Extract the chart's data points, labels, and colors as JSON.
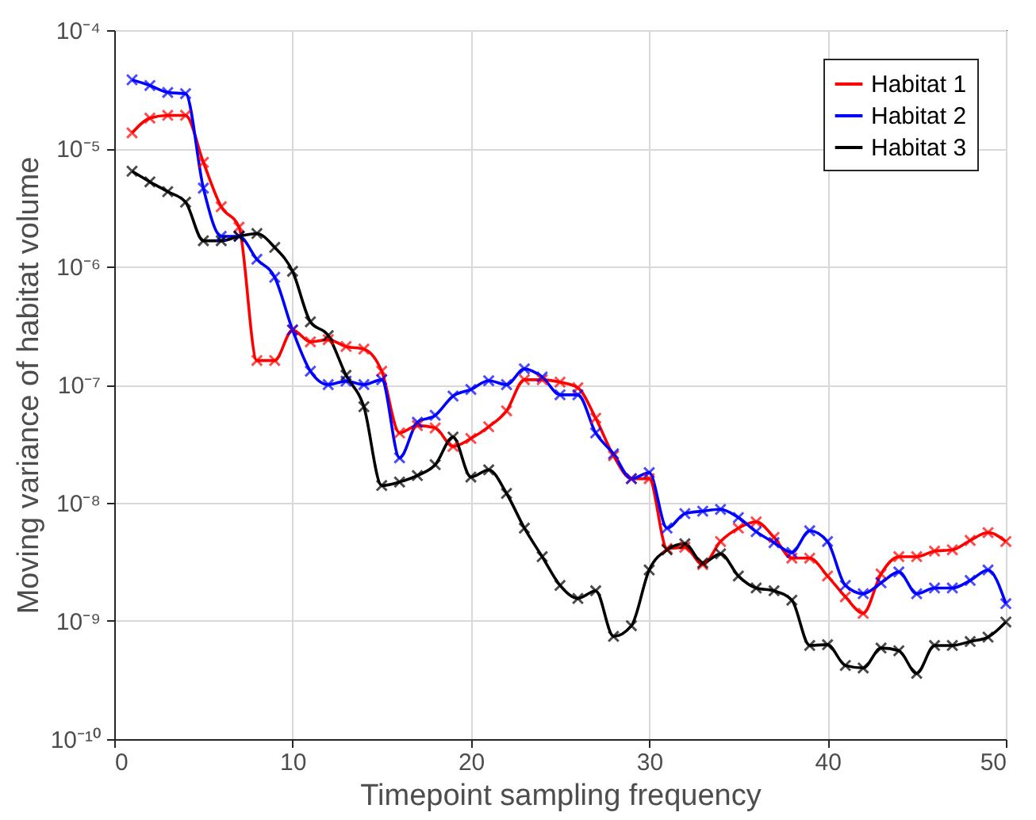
{
  "chart_data": {
    "type": "line",
    "xlabel": "Timepoint sampling frequency",
    "ylabel": "Moving variance of habitat volume",
    "x": [
      1,
      2,
      3,
      4,
      5,
      6,
      7,
      8,
      9,
      10,
      11,
      12,
      13,
      14,
      15,
      16,
      17,
      18,
      19,
      20,
      21,
      22,
      23,
      24,
      25,
      26,
      27,
      28,
      29,
      30,
      31,
      32,
      33,
      34,
      35,
      36,
      37,
      38,
      39,
      40,
      41,
      42,
      43,
      44,
      45,
      46,
      47,
      48,
      49,
      50
    ],
    "series": [
      {
        "name": "Habitat 1",
        "color": "#ff0000",
        "values": [
          1.35e-05,
          1.8e-05,
          1.9e-05,
          1.9e-05,
          7.6e-06,
          3.2e-06,
          2.15e-06,
          1.6e-07,
          1.6e-07,
          2.9e-07,
          2.3e-07,
          2.4e-07,
          2.1e-07,
          2e-07,
          1.3e-07,
          3.9e-08,
          4.5e-08,
          4.3e-08,
          3e-08,
          3.5e-08,
          4.4e-08,
          6e-08,
          1.1e-07,
          1.1e-07,
          1.05e-07,
          9.4e-08,
          5.2e-08,
          2.5e-08,
          1.6e-08,
          1.6e-08,
          4.1e-09,
          4.2e-09,
          3e-09,
          4.7e-09,
          6.1e-09,
          6.9e-09,
          5.1e-09,
          3.4e-09,
          3.4e-09,
          2.4e-09,
          1.6e-09,
          1.16e-09,
          2.5e-09,
          3.5e-09,
          3.5e-09,
          3.9e-09,
          4e-09,
          4.8e-09,
          5.6e-09,
          4.7e-09
        ]
      },
      {
        "name": "Habitat 2",
        "color": "#0000ff",
        "values": [
          3.8e-05,
          3.4e-05,
          2.97e-05,
          2.9e-05,
          4.6e-06,
          1.8e-06,
          1.8e-06,
          1.15e-06,
          8.1e-07,
          2.9e-07,
          1.3e-07,
          1e-07,
          1.07e-07,
          1e-07,
          1.1e-07,
          2.4e-08,
          4.8e-08,
          5.5e-08,
          8e-08,
          9.1e-08,
          1.08e-07,
          1e-07,
          1.36e-07,
          1.16e-07,
          8.2e-08,
          8.2e-08,
          3.9e-08,
          2.6e-08,
          1.6e-08,
          1.8e-08,
          6.1e-09,
          8.1e-09,
          8.5e-09,
          8.8e-09,
          7.5e-09,
          5.7e-09,
          4.6e-09,
          3.8e-09,
          5.8e-09,
          4.7e-09,
          2e-09,
          1.7e-09,
          2.1e-09,
          2.6e-09,
          1.7e-09,
          1.9e-09,
          1.9e-09,
          2.2e-09,
          2.7e-09,
          1.4e-09
        ]
      },
      {
        "name": "Habitat 3",
        "color": "#000000",
        "values": [
          6.4e-06,
          5.2e-06,
          4.3e-06,
          3.5e-06,
          1.65e-06,
          1.65e-06,
          1.8e-06,
          1.9e-06,
          1.45e-06,
          9.1e-07,
          3.4e-07,
          2.6e-07,
          1.2e-07,
          6.5e-08,
          1.4e-08,
          1.5e-08,
          1.7e-08,
          2.1e-08,
          3.6e-08,
          1.65e-08,
          1.9e-08,
          1.2e-08,
          6.1e-09,
          3.5e-09,
          2e-09,
          1.55e-09,
          1.8e-09,
          7.4e-10,
          9.1e-10,
          2.7e-09,
          4e-09,
          4.5e-09,
          3.1e-09,
          3.7e-09,
          2.4e-09,
          1.9e-09,
          1.8e-09,
          1.5e-09,
          6.2e-10,
          6.3e-10,
          4.2e-10,
          4e-10,
          5.9e-10,
          5.6e-10,
          3.6e-10,
          6.2e-10,
          6.2e-10,
          6.7e-10,
          7.3e-10,
          9.8e-10
        ]
      }
    ],
    "log": "y",
    "xlim": [
      0,
      50
    ],
    "xticks": [
      0,
      10,
      20,
      30,
      40,
      50
    ],
    "ylim": [
      1e-10,
      0.0001
    ],
    "yticks": [
      {
        "value": 1e-10,
        "label": "10⁻¹⁰"
      },
      {
        "value": 1e-09,
        "label": "10⁻⁹"
      },
      {
        "value": 1e-08,
        "label": "10⁻⁸"
      },
      {
        "value": 1e-07,
        "label": "10⁻⁷"
      },
      {
        "value": 1e-06,
        "label": "10⁻⁶"
      },
      {
        "value": 1e-05,
        "label": "10⁻⁵"
      },
      {
        "value": 0.0001,
        "label": "10⁻⁴"
      }
    ],
    "grid": true,
    "legend": "top right",
    "marker": "cross",
    "line_style": "solid"
  }
}
